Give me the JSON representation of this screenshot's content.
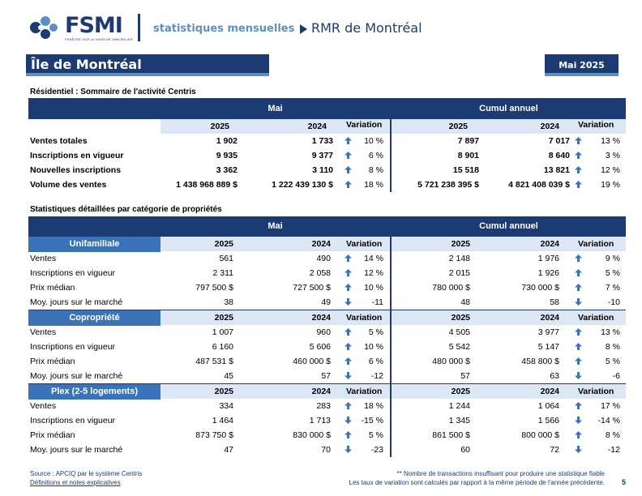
{
  "header": {
    "logo_text": "FSMI",
    "logo_subtitle": "FENÊTRE SUR LE MARCHÉ IMMOBILIER",
    "title": "statistiques mensuelles",
    "region": "RMR de Montréal"
  },
  "page_title": "Île de Montréal",
  "month_label": "Mai 2025",
  "colors": {
    "navy": "#1d3b73",
    "mid_blue": "#3a73b8",
    "light_blue": "#dbe7f5",
    "accent": "#5e8fc4"
  },
  "summary": {
    "title": "Résidentiel : Sommaire de l'activité Centris",
    "band_left": "Mai",
    "band_right": "Cumul annuel",
    "col_y1": "2025",
    "col_y2": "2024",
    "col_var": "Variation",
    "rows": [
      {
        "label": "Ventes totales",
        "m25": "1 902",
        "m24": "1 733",
        "mdir": "up",
        "mvar": "10 %",
        "c25": "7 897",
        "c24": "7 017",
        "cdir": "up",
        "cvar": "13 %"
      },
      {
        "label": "Inscriptions en vigueur",
        "m25": "9 935",
        "m24": "9 377",
        "mdir": "up",
        "mvar": "6 %",
        "c25": "8 901",
        "c24": "8 640",
        "cdir": "up",
        "cvar": "3 %"
      },
      {
        "label": "Nouvelles inscriptions",
        "m25": "3 362",
        "m24": "3 110",
        "mdir": "up",
        "mvar": "8 %",
        "c25": "15 518",
        "c24": "13 821",
        "cdir": "up",
        "cvar": "12 %"
      },
      {
        "label": "Volume des ventes",
        "m25": "1 438 968 889  $",
        "m24": "1 222 439 130  $",
        "mdir": "up",
        "mvar": "18 %",
        "c25": "5 721 238 395  $",
        "c24": "4 821 408 039  $",
        "cdir": "up",
        "cvar": "19 %"
      }
    ]
  },
  "detail": {
    "title": "Statistiques détaillées par catégorie de propriétés",
    "band_left": "Mai",
    "band_right": "Cumul annuel",
    "col_y1": "2025",
    "col_y2": "2024",
    "col_var": "Variation",
    "categories": [
      {
        "name": "Unifamiliale",
        "rows": [
          {
            "label": "Ventes",
            "m25": "561",
            "m24": "490",
            "mdir": "up",
            "mvar": "14 %",
            "c25": "2 148",
            "c24": "1 976",
            "cdir": "up",
            "cvar": "9 %"
          },
          {
            "label": "Inscriptions en vigueur",
            "m25": "2 311",
            "m24": "2 058",
            "mdir": "up",
            "mvar": "12 %",
            "c25": "2 015",
            "c24": "1 926",
            "cdir": "up",
            "cvar": "5 %"
          },
          {
            "label": "Prix médian",
            "m25": "797 500 $",
            "m24": "727 500 $",
            "mdir": "up",
            "mvar": "10 %",
            "c25": "780 000 $",
            "c24": "730 000 $",
            "cdir": "up",
            "cvar": "7 %"
          },
          {
            "label": "Moy. jours sur le marché",
            "m25": "38",
            "m24": "49",
            "mdir": "down",
            "mvar": "-11",
            "c25": "48",
            "c24": "58",
            "cdir": "down",
            "cvar": "-10"
          }
        ]
      },
      {
        "name": "Copropriété",
        "rows": [
          {
            "label": "Ventes",
            "m25": "1 007",
            "m24": "960",
            "mdir": "up",
            "mvar": "5 %",
            "c25": "4 505",
            "c24": "3 977",
            "cdir": "up",
            "cvar": "13 %"
          },
          {
            "label": "Inscriptions en vigueur",
            "m25": "6 160",
            "m24": "5 606",
            "mdir": "up",
            "mvar": "10 %",
            "c25": "5 542",
            "c24": "5 147",
            "cdir": "up",
            "cvar": "8 %"
          },
          {
            "label": "Prix médian",
            "m25": "487 531 $",
            "m24": "460 000 $",
            "mdir": "up",
            "mvar": "6 %",
            "c25": "480 000 $",
            "c24": "458 800 $",
            "cdir": "up",
            "cvar": "5 %"
          },
          {
            "label": "Moy. jours sur le marché",
            "m25": "45",
            "m24": "57",
            "mdir": "down",
            "mvar": "-12",
            "c25": "57",
            "c24": "63",
            "cdir": "down",
            "cvar": "-6"
          }
        ]
      },
      {
        "name": "Plex (2-5 logements)",
        "rows": [
          {
            "label": "Ventes",
            "m25": "334",
            "m24": "283",
            "mdir": "up",
            "mvar": "18 %",
            "c25": "1 244",
            "c24": "1 064",
            "cdir": "up",
            "cvar": "17 %"
          },
          {
            "label": "Inscriptions en vigueur",
            "m25": "1 464",
            "m24": "1 713",
            "mdir": "down",
            "mvar": "-15 %",
            "c25": "1 345",
            "c24": "1 566",
            "cdir": "down",
            "cvar": "-14 %"
          },
          {
            "label": "Prix médian",
            "m25": "873 750 $",
            "m24": "830 000 $",
            "mdir": "up",
            "mvar": "5 %",
            "c25": "861 500 $",
            "c24": "800 000 $",
            "cdir": "up",
            "cvar": "8 %"
          },
          {
            "label": "Moy. jours sur le marché",
            "m25": "47",
            "m24": "70",
            "mdir": "down",
            "mvar": "-23",
            "c25": "60",
            "c24": "72",
            "cdir": "down",
            "cvar": "-12"
          }
        ]
      }
    ]
  },
  "footer": {
    "source": "Source : APCIQ par le système Centris",
    "definitions_link": "Définitions et notes explicatives",
    "note1": "** Nombre de transactions insuffisant pour produire une statistique fiable",
    "note2": "Les taux de variation sont calculés par rapport à la même période de l'année précédente.",
    "page_number": "5"
  }
}
